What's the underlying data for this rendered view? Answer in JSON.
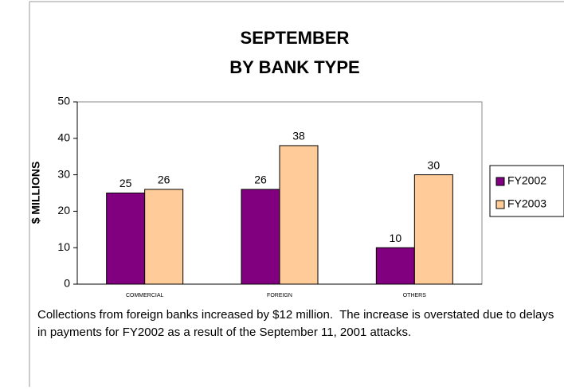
{
  "chart_data": {
    "type": "bar",
    "title": [
      "SEPTEMBER",
      "BY BANK TYPE"
    ],
    "y_label": "$ MILLIONS",
    "categories": [
      "COMMERCIAL",
      "FOREIGN",
      "OTHERS"
    ],
    "series": [
      {
        "name": "FY2002",
        "color": "#800080",
        "values": [
          25,
          26,
          10
        ]
      },
      {
        "name": "FY2003",
        "color": "#ffcc99",
        "values": [
          26,
          38,
          30
        ]
      }
    ],
    "ylim": [
      0,
      50
    ],
    "yticks": [
      0,
      10,
      20,
      30,
      40,
      50
    ],
    "legend": "right",
    "caption": "Collections from foreign banks increased by $12 million.  The increase is overstated due to delays in payments for FY2002 as a result of the September 11, 2001 attacks."
  }
}
